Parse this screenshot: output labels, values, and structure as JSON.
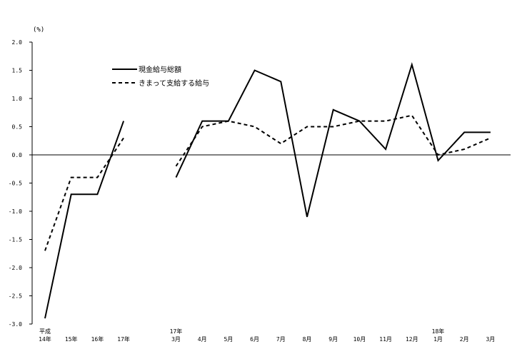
{
  "chart_data": {
    "type": "line",
    "unit_label": "(%)",
    "ylim": [
      -3.0,
      2.0
    ],
    "y_ticks": [
      "2.0",
      "1.5",
      "1.0",
      "0.5",
      "0.0",
      "-0.5",
      "-1.0",
      "-1.5",
      "-2.0",
      "-2.5",
      "-3.0"
    ],
    "categories": [
      {
        "line1": "平成",
        "line2": "14年"
      },
      {
        "line1": "",
        "line2": "15年"
      },
      {
        "line1": "",
        "line2": "16年"
      },
      {
        "line1": "",
        "line2": "17年"
      },
      {
        "line1": "",
        "line2": ""
      },
      {
        "line1": "17年",
        "line2": "3月"
      },
      {
        "line1": "",
        "line2": "4月"
      },
      {
        "line1": "",
        "line2": "5月"
      },
      {
        "line1": "",
        "line2": "6月"
      },
      {
        "line1": "",
        "line2": "7月"
      },
      {
        "line1": "",
        "line2": "8月"
      },
      {
        "line1": "",
        "line2": "9月"
      },
      {
        "line1": "",
        "line2": "10月"
      },
      {
        "line1": "",
        "line2": "11月"
      },
      {
        "line1": "",
        "line2": "12月"
      },
      {
        "line1": "18年",
        "line2": "1月"
      },
      {
        "line1": "",
        "line2": "2月"
      },
      {
        "line1": "",
        "line2": "3月"
      }
    ],
    "series": [
      {
        "name": "現金給与総額",
        "style": "solid",
        "color": "#000000",
        "values": [
          -2.9,
          -0.7,
          -0.7,
          0.6,
          null,
          -0.4,
          0.6,
          0.6,
          1.5,
          1.3,
          -1.1,
          0.8,
          0.6,
          0.1,
          1.6,
          -0.1,
          0.4,
          0.4
        ]
      },
      {
        "name": "きまって支給する給与",
        "style": "dashed",
        "color": "#000000",
        "values": [
          -1.7,
          -0.4,
          -0.4,
          0.3,
          null,
          -0.2,
          0.5,
          0.6,
          0.5,
          0.2,
          0.5,
          0.5,
          0.6,
          0.6,
          0.7,
          0.0,
          0.1,
          0.3
        ]
      }
    ],
    "legend_position": "top-left"
  }
}
